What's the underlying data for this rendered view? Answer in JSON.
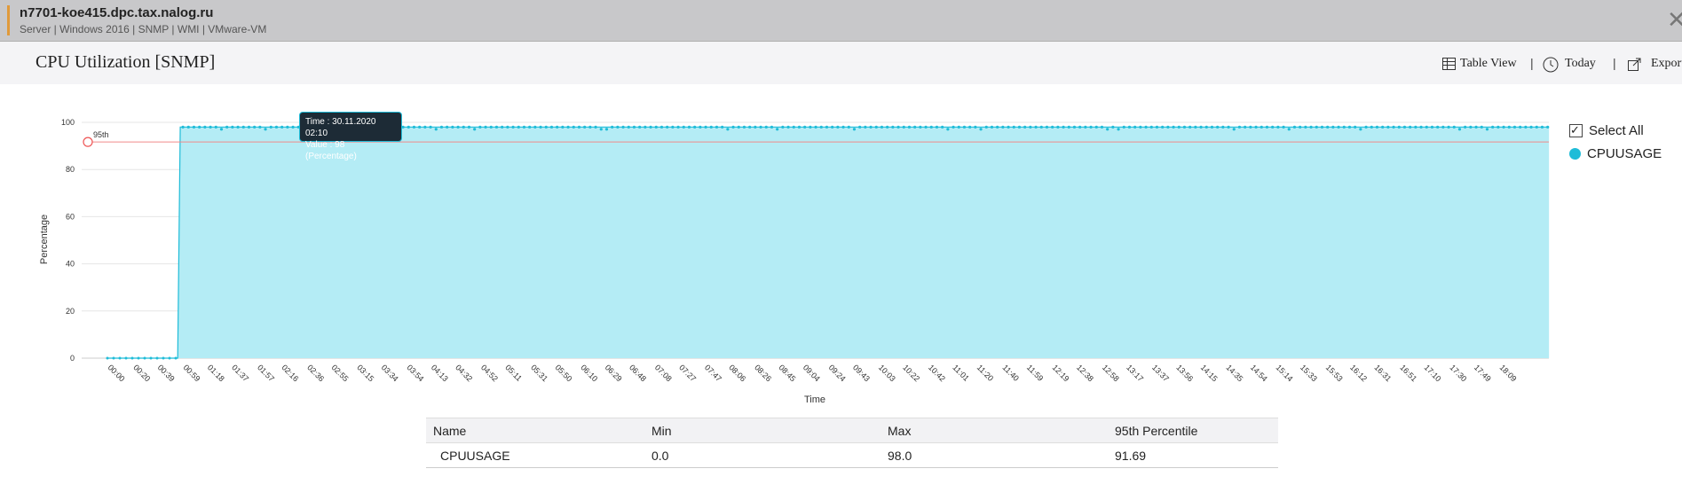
{
  "header": {
    "host": "n7701-koe415.dpc.tax.nalog.ru",
    "meta": "Server | Windows 2016 | SNMP | WMI | VMware-VM",
    "close_glyph": "✕"
  },
  "subheader": {
    "title": "CPU Utilization [SNMP]",
    "table_view": "Table View",
    "today": "Today",
    "export": "Export"
  },
  "legend": {
    "select_all": "Select All",
    "series": "CPUUSAGE",
    "series_color": "#1fbcd8"
  },
  "tooltip": {
    "time": "Time : 30.11.2020 02:10",
    "value": "Value : 98 (Percentage)"
  },
  "chart_data": {
    "type": "area",
    "xlabel": "Time",
    "ylabel": "Percentage",
    "ylim": [
      0,
      100
    ],
    "yticks": [
      0,
      20,
      40,
      60,
      80,
      100
    ],
    "threshold": {
      "label": "95th",
      "value": 91.69,
      "color": "#f08a8a"
    },
    "xticks": [
      "00:00",
      "00:20",
      "00:39",
      "00:59",
      "01:18",
      "01:37",
      "01:57",
      "02:16",
      "02:36",
      "02:55",
      "03:15",
      "03:34",
      "03:54",
      "04:13",
      "04:32",
      "04:52",
      "05:11",
      "05:31",
      "05:50",
      "06:10",
      "06:29",
      "06:48",
      "07:08",
      "07:27",
      "07:47",
      "08:06",
      "08:26",
      "08:45",
      "09:04",
      "09:24",
      "09:43",
      "10:03",
      "10:22",
      "10:42",
      "11:01",
      "11:20",
      "11:40",
      "11:59",
      "12:19",
      "12:38",
      "12:58",
      "13:17",
      "13:37",
      "13:56",
      "14:15",
      "14:35",
      "14:54",
      "15:14",
      "15:33",
      "15:53",
      "16:12",
      "16:31",
      "16:51",
      "17:10",
      "17:30",
      "17:49",
      "18:09"
    ],
    "series": [
      {
        "name": "CPUUSAGE",
        "color": "#1fbcd8",
        "fill": "#b4ecf5",
        "segments": [
          {
            "from": "00:00",
            "to": "00:55",
            "value": 0
          },
          {
            "from": "00:57",
            "to": "18:48",
            "value": 98
          }
        ]
      }
    ],
    "grid": true
  },
  "stats_table": {
    "headers": [
      "Name",
      "Min",
      "Max",
      "95th Percentile"
    ],
    "rows": [
      [
        "CPUUSAGE",
        "0.0",
        "98.0",
        "91.69"
      ]
    ]
  }
}
